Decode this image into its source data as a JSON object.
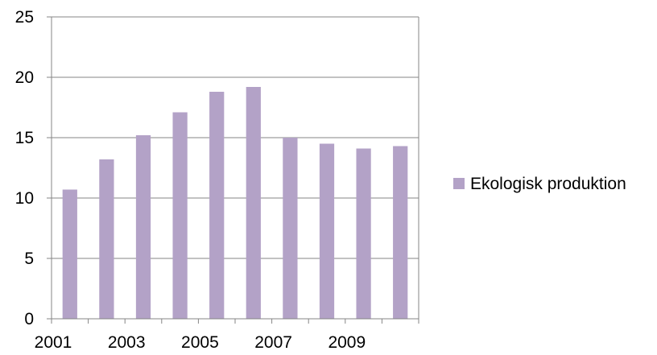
{
  "chart_data": {
    "type": "bar",
    "categories": [
      "2001",
      "2002",
      "2003",
      "2004",
      "2005",
      "2006",
      "2007",
      "2008",
      "2009",
      "2010"
    ],
    "x_tick_labels": [
      "2001",
      "2003",
      "2005",
      "2007",
      "2009"
    ],
    "series": [
      {
        "name": "Ekologisk produktion",
        "color": "#b3a2c7",
        "values": [
          10.7,
          13.2,
          15.2,
          17.1,
          18.8,
          19.2,
          15.0,
          14.5,
          14.1,
          14.3
        ]
      }
    ],
    "y_ticks": [
      0,
      5,
      10,
      15,
      20,
      25
    ],
    "ylim": [
      0,
      25
    ],
    "grid": true,
    "legend_position": "right"
  }
}
